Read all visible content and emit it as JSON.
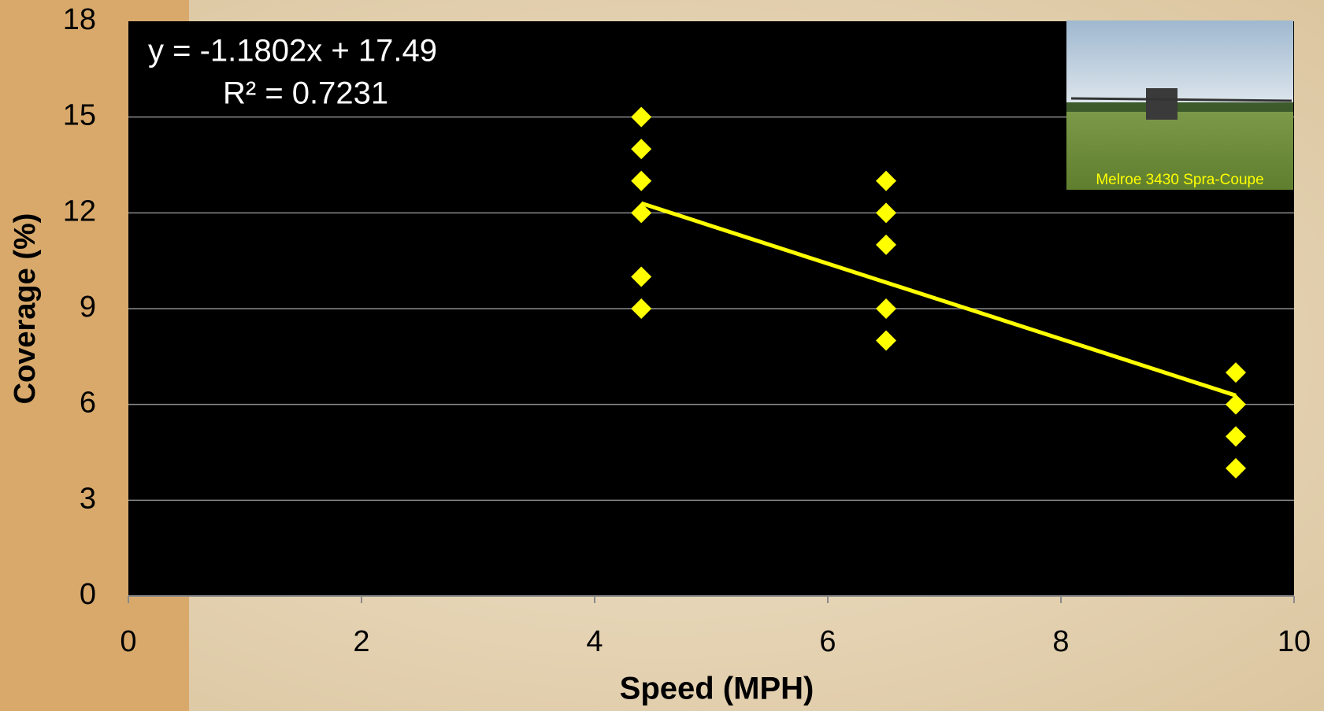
{
  "chart_data": {
    "type": "scatter",
    "xlabel": "Speed (MPH)",
    "ylabel": "Coverage (%)",
    "x": [
      4.4,
      4.4,
      4.4,
      4.4,
      4.4,
      4.4,
      6.5,
      6.5,
      6.5,
      6.5,
      6.5,
      9.5,
      9.5,
      9.5,
      9.5
    ],
    "values": [
      15,
      14,
      13,
      12,
      10,
      9,
      13,
      12,
      11,
      9,
      8,
      7,
      6,
      5,
      4
    ],
    "color": "#ffff00",
    "trendline": {
      "x": [
        4.4,
        9.5
      ],
      "values": [
        12.3,
        6.28
      ],
      "color": "#ffff00"
    },
    "annotations": [
      "y = -1.1802x + 17.49",
      "R² = 0.7231"
    ],
    "image_caption": "Melroe 3430 Spra-Coupe",
    "xlim": [
      0,
      10
    ],
    "xticks": [
      0,
      2,
      4,
      6,
      8,
      10
    ],
    "ylim": [
      0,
      18
    ],
    "yticks": [
      0,
      3,
      6,
      9,
      12,
      15,
      18
    ],
    "grid": true
  }
}
